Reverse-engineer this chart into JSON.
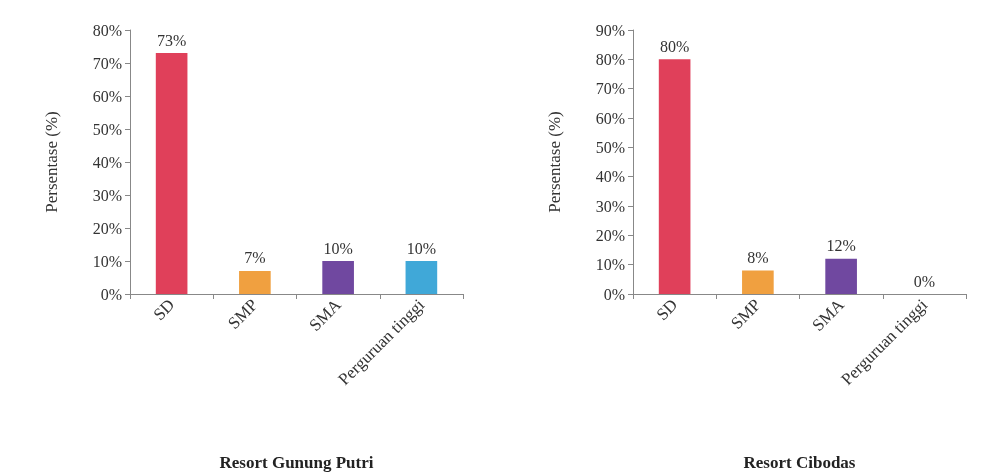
{
  "chart_data": [
    {
      "type": "bar",
      "xlabel": "Resort Gunung Putri",
      "ylabel": "Persentase (%)",
      "categories": [
        "SD",
        "SMP",
        "SMA",
        "Perguruan tinggi"
      ],
      "values": [
        73,
        7,
        10,
        10
      ],
      "colors": [
        "#e0405a",
        "#f0a040",
        "#7048a0",
        "#40a8d8"
      ],
      "value_labels": [
        "73%",
        "7%",
        "10%",
        "10%"
      ],
      "ylim": [
        0,
        80
      ],
      "yticks": [
        {
          "value": 0,
          "label": "0%"
        },
        {
          "value": 10,
          "label": "10%"
        },
        {
          "value": 20,
          "label": "20%"
        },
        {
          "value": 30,
          "label": "30%"
        },
        {
          "value": 40,
          "label": "40%"
        },
        {
          "value": 50,
          "label": "50%"
        },
        {
          "value": 60,
          "label": "60%"
        },
        {
          "value": 70,
          "label": "70%"
        },
        {
          "value": 80,
          "label": "80%"
        }
      ],
      "grid": false
    },
    {
      "type": "bar",
      "xlabel": "Resort Cibodas",
      "ylabel": "Persentase (%)",
      "categories": [
        "SD",
        "SMP",
        "SMA",
        "Perguruan tinggi"
      ],
      "values": [
        80,
        8,
        12,
        0
      ],
      "colors": [
        "#e0405a",
        "#f0a040",
        "#7048a0",
        "#40a8d8"
      ],
      "value_labels": [
        "80%",
        "8%",
        "12%",
        "0%"
      ],
      "ylim": [
        0,
        90
      ],
      "yticks": [
        {
          "value": 0,
          "label": "0%"
        },
        {
          "value": 10,
          "label": "10%"
        },
        {
          "value": 20,
          "label": "20%"
        },
        {
          "value": 30,
          "label": "30%"
        },
        {
          "value": 40,
          "label": "40%"
        },
        {
          "value": 50,
          "label": "50%"
        },
        {
          "value": 60,
          "label": "60%"
        },
        {
          "value": 70,
          "label": "70%"
        },
        {
          "value": 80,
          "label": "80%"
        },
        {
          "value": 90,
          "label": "90%"
        }
      ],
      "grid": false
    }
  ]
}
